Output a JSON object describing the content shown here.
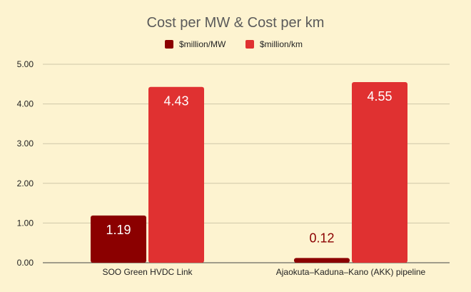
{
  "chart_data": {
    "type": "bar",
    "title": "Cost per MW & Cost per km",
    "categories": [
      "SOO Green HVDC Link",
      "Ajaokuta–Kaduna–Kano (AKK) pipeline"
    ],
    "series": [
      {
        "name": "$million/MW",
        "values": [
          1.19,
          0.12
        ],
        "labels": [
          "1.19",
          "0.12"
        ],
        "color": "#8b0000"
      },
      {
        "name": "$million/km",
        "values": [
          4.43,
          4.55
        ],
        "labels": [
          "4.43",
          "4.55"
        ],
        "color": "#e03131"
      }
    ],
    "ylim": [
      0,
      5
    ],
    "yticks": [
      "0.00",
      "1.00",
      "2.00",
      "3.00",
      "4.00",
      "5.00"
    ],
    "grid": true,
    "legend_position": "top"
  },
  "colors": {
    "background": "#fdf3d0",
    "gridline": "#cfc7a8",
    "label_inside": "#ffffff",
    "label_outside_dark": "#8b0000"
  }
}
